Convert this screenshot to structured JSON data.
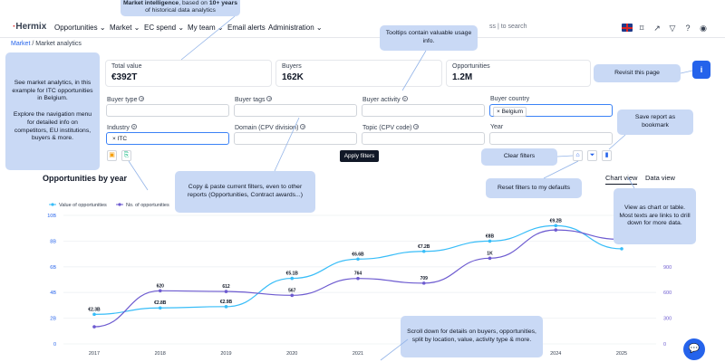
{
  "topnav": {
    "logo": "Hermix",
    "items": [
      "Opportunities",
      "Market",
      "EC spend",
      "My team",
      "Email alerts",
      "Administration"
    ],
    "search_placeholder": "to search",
    "search_prefix": "ss"
  },
  "breadcrumb": {
    "root": "Market",
    "separator": "/",
    "current": "Market analytics"
  },
  "kpis": [
    {
      "label": "Total value",
      "value": "€392T"
    },
    {
      "label": "Buyers",
      "value": "162K"
    },
    {
      "label": "Opportunities",
      "value": "1.2M"
    }
  ],
  "filters": {
    "buyer_type": "Buyer type",
    "buyer_tags": "Buyer tags",
    "buyer_activity": "Buyer activity",
    "buyer_country": "Buyer country",
    "buyer_country_chip": "× Belgium",
    "industry": "Industry",
    "industry_chip": "× ITC",
    "domain": "Domain (CPV division)",
    "topic": "Topic (CPV code)",
    "year": "Year",
    "apply": "Apply filters"
  },
  "section": {
    "title": "Opportunities by year",
    "tab_chart": "Chart view",
    "tab_data": "Data view"
  },
  "tooltips": {
    "top_bold": "Market intelligence",
    "top_mid": ", based on ",
    "top_bold2": "10+ years",
    "top_rest": " of historical data analytics",
    "usage": "Tooltips contain valuable usage info.",
    "explore_1": "See market analytics, in this example for ITC opportunities in Belgium.",
    "explore_2": "Explore the navigation menu for detailed info on competitors, EU institutions, buyers & more.",
    "revisit": "Revisit this page",
    "save_report": "Save report as bookmark",
    "clear": "Clear filters",
    "reset": "Reset filters to my defaults",
    "copy": "Copy & paste current filters, even to other reports (Opportunities, Contract awards...)",
    "view": "View as chart or table. Most texts are links to drill down for more data.",
    "scroll": "Scroll down for details on buyers, opportunities, split by location, value, activity type & more."
  },
  "chart_data": {
    "type": "line",
    "x": [
      "2017",
      "2018",
      "2019",
      "2020",
      "2021",
      "2022",
      "2023",
      "2024",
      "2025"
    ],
    "series": [
      {
        "name": "Value of opportunities",
        "color": "#38bdf8",
        "axis": "left",
        "values": [
          2.3,
          2.8,
          2.9,
          5.1,
          6.6,
          7.2,
          8,
          9.2,
          7.4
        ],
        "labels": [
          "€2.3B",
          "€2.8B",
          "€2.9B",
          "€5.1B",
          "€6.6B",
          "€7.2B",
          "€8B",
          "€9.2B",
          ""
        ]
      },
      {
        "name": "No. of opportunities",
        "color": "#6d5bd0",
        "axis": "right",
        "values": [
          200,
          620,
          612,
          567,
          764,
          709,
          1000,
          1330,
          1220
        ],
        "labels": [
          "",
          "620",
          "612",
          "567",
          "764",
          "709",
          "1K",
          "",
          "1.2K"
        ]
      }
    ],
    "y_left": {
      "ticks": [
        "0",
        "2B",
        "4B",
        "6B",
        "8B",
        "10B"
      ],
      "range": [
        0,
        10
      ]
    },
    "y_right": {
      "ticks": [
        "0",
        "300",
        "600",
        "900"
      ],
      "range": [
        0,
        1500
      ]
    },
    "legend": "top-left"
  }
}
